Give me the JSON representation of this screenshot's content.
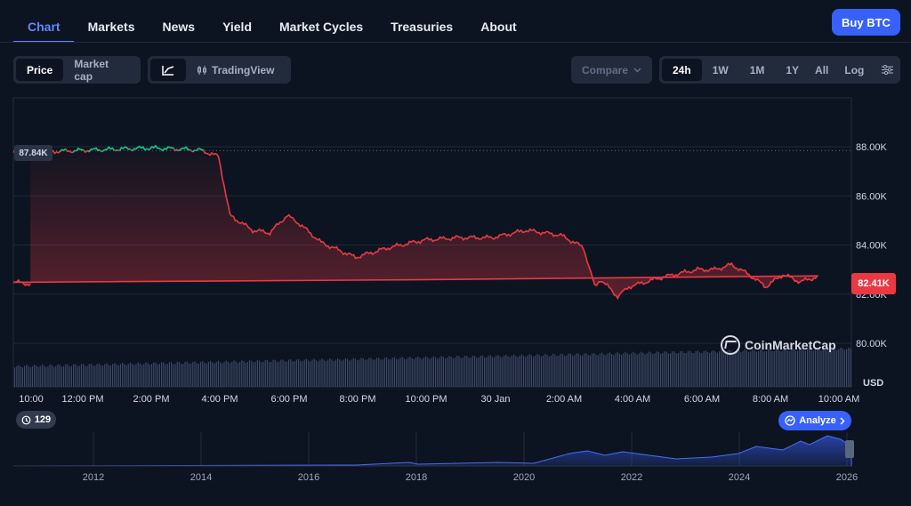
{
  "nav": {
    "tabs": [
      {
        "label": "Chart",
        "active": true
      },
      {
        "label": "Markets"
      },
      {
        "label": "News"
      },
      {
        "label": "Yield"
      },
      {
        "label": "Market Cycles"
      },
      {
        "label": "Treasuries"
      },
      {
        "label": "About"
      }
    ],
    "buy_label": "Buy BTC"
  },
  "toolbar": {
    "metric": [
      "Price",
      "Market cap"
    ],
    "metric_selected": "Price",
    "chart_style_label": "TradingView",
    "compare_label": "Compare",
    "ranges": [
      "24h",
      "1W",
      "1M",
      "1Y",
      "All"
    ],
    "range_selected": "24h",
    "log_label": "Log"
  },
  "colors": {
    "up": "#16c784",
    "down": "#ea3943",
    "accent": "#3861fb",
    "background": "#0d1421"
  },
  "badges": {
    "start_price": "87.84K",
    "current_price": "82.41K",
    "currency": "USD",
    "history_count": "129",
    "analyze_label": "Analyze",
    "watermark": "CoinMarketCap"
  },
  "chart_data": {
    "type": "line",
    "y_axis_ticks": [
      "80.00K",
      "82.00K",
      "84.00K",
      "86.00K",
      "88.00K"
    ],
    "ylim": [
      79000,
      91000
    ],
    "x_tick_labels": [
      "10:00",
      "12:00 PM",
      "2:00 PM",
      "4:00 PM",
      "6:00 PM",
      "8:00 PM",
      "10:00 PM",
      "30 Jan",
      "2:00 AM",
      "4:00 AM",
      "6:00 AM",
      "8:00 AM",
      "10:00 AM"
    ],
    "reference_price": 87840,
    "series": [
      {
        "x": [
          "10:00",
          "11:00",
          "12:00",
          "13:00",
          "14:00",
          "15:00",
          "15:30",
          "16:00",
          "16:20",
          "17:00",
          "17:30",
          "18:00",
          "18:20",
          "19:00",
          "19:30",
          "20:00",
          "20:30",
          "21:00",
          "22:00",
          "23:00",
          "00:00",
          "01:00",
          "02:00",
          "02:40",
          "03:00",
          "03:10",
          "03:40",
          "04:00",
          "05:00",
          "06:00",
          "06:30",
          "07:00",
          "07:30",
          "08:00",
          "08:30",
          "09:00",
          "09:30",
          "10:00",
          "10:30"
        ],
        "values": [
          87800,
          87800,
          87850,
          87900,
          87950,
          87900,
          87850,
          87600,
          85200,
          84600,
          84500,
          85200,
          84900,
          84100,
          83800,
          83500,
          83700,
          83900,
          84200,
          84300,
          84300,
          84600,
          84400,
          83900,
          82300,
          82600,
          81900,
          82300,
          82700,
          83000,
          83000,
          83200,
          82800,
          82300,
          82800,
          82500,
          82700,
          82500,
          82410
        ]
      }
    ],
    "volume": "bars",
    "overview": {
      "x_tick_labels": [
        "2012",
        "2014",
        "2016",
        "2018",
        "2020",
        "2022",
        "2024",
        "2026"
      ]
    }
  }
}
